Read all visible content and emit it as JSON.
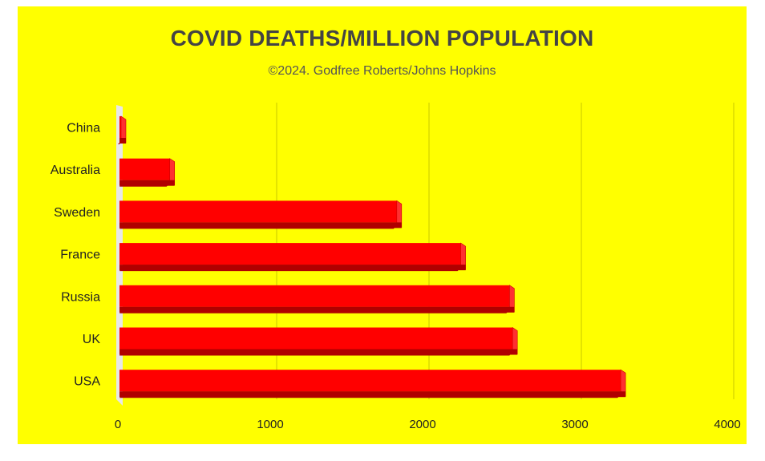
{
  "colors": {
    "background": "#ffff00",
    "bar": "#ff0000",
    "bar_side": "#ff3030",
    "bar_shadow": "#b00000",
    "gridline": "#c8c800",
    "axis_wall": "#e8e8e8",
    "title": "#444444",
    "subtitle": "#555555",
    "label": "#222222"
  },
  "chart_data": {
    "type": "bar",
    "orientation": "horizontal",
    "style": "3d",
    "title": "COVID DEATHS/MILLION POPULATION",
    "subtitle": "©2024. Godfree Roberts/Johns Hopkins",
    "categories": [
      "China",
      "Australia",
      "Sweden",
      "France",
      "Russia",
      "UK",
      "USA"
    ],
    "values": [
      5,
      330,
      1820,
      2240,
      2560,
      2580,
      3290
    ],
    "xlim": [
      0,
      4000
    ],
    "xticks": [
      "0",
      "1000",
      "2000",
      "3000",
      "4000"
    ],
    "xtick_values": [
      0,
      1000,
      2000,
      3000,
      4000
    ],
    "grid": true,
    "legend": "none"
  }
}
